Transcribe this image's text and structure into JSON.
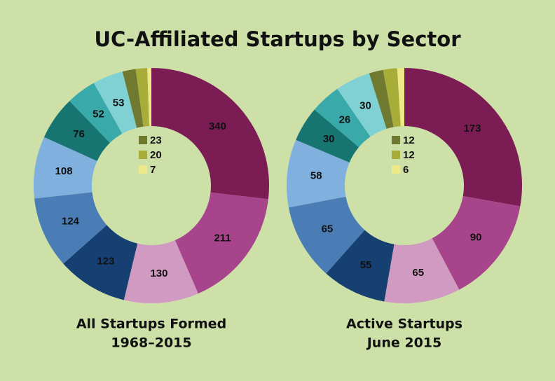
{
  "title": "UC-Affiliated Startups by Sector",
  "chart_data": [
    {
      "type": "donut",
      "title": "All Startups Formed",
      "subtitle": "1968–2015",
      "values": [
        340,
        211,
        130,
        123,
        124,
        108,
        76,
        52,
        53,
        23,
        20,
        7
      ],
      "colors": [
        "#7b1c54",
        "#a8448c",
        "#d19ac2",
        "#163f72",
        "#4a7db5",
        "#7fb0de",
        "#167571",
        "#3aa9a9",
        "#7fd1d3",
        "#6f7a30",
        "#a8ad3a",
        "#ede98a"
      ]
    },
    {
      "type": "donut",
      "title": "Active Startups",
      "subtitle": "June 2015",
      "values": [
        173,
        90,
        65,
        55,
        65,
        58,
        30,
        26,
        30,
        12,
        12,
        6
      ],
      "colors": [
        "#7b1c54",
        "#a8448c",
        "#d19ac2",
        "#163f72",
        "#4a7db5",
        "#7fb0de",
        "#167571",
        "#3aa9a9",
        "#7fd1d3",
        "#6f7a30",
        "#a8ad3a",
        "#ede98a"
      ]
    }
  ]
}
